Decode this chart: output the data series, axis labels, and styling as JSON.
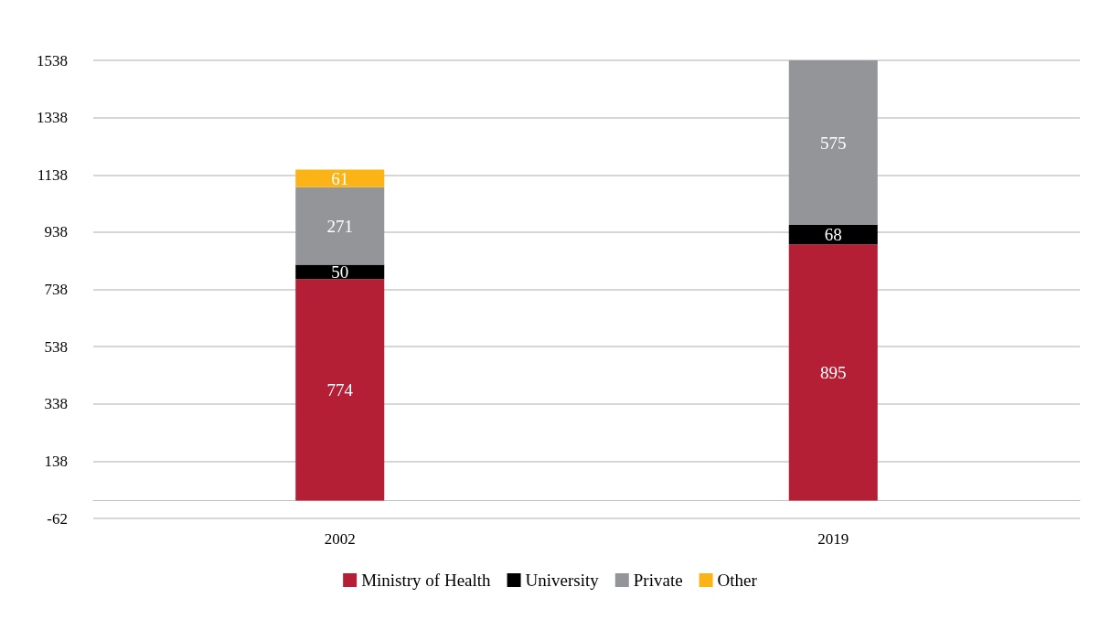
{
  "chart_data": {
    "type": "bar",
    "stacked": true,
    "categories": [
      "2002",
      "2019"
    ],
    "series": [
      {
        "name": "Ministry of Health",
        "color": "#b51f36",
        "values": [
          774,
          895
        ]
      },
      {
        "name": "University",
        "color": "#000000",
        "values": [
          50,
          68
        ]
      },
      {
        "name": "Private",
        "color": "#939598",
        "values": [
          271,
          575
        ]
      },
      {
        "name": "Other",
        "color": "#fbb316",
        "values": [
          61,
          null
        ]
      }
    ],
    "ylim": [
      -62,
      1538
    ],
    "yticks": [
      -62,
      138,
      338,
      538,
      738,
      938,
      1138,
      1338,
      1538
    ],
    "grid": "y",
    "legend": "bottom",
    "data_labels": true
  }
}
